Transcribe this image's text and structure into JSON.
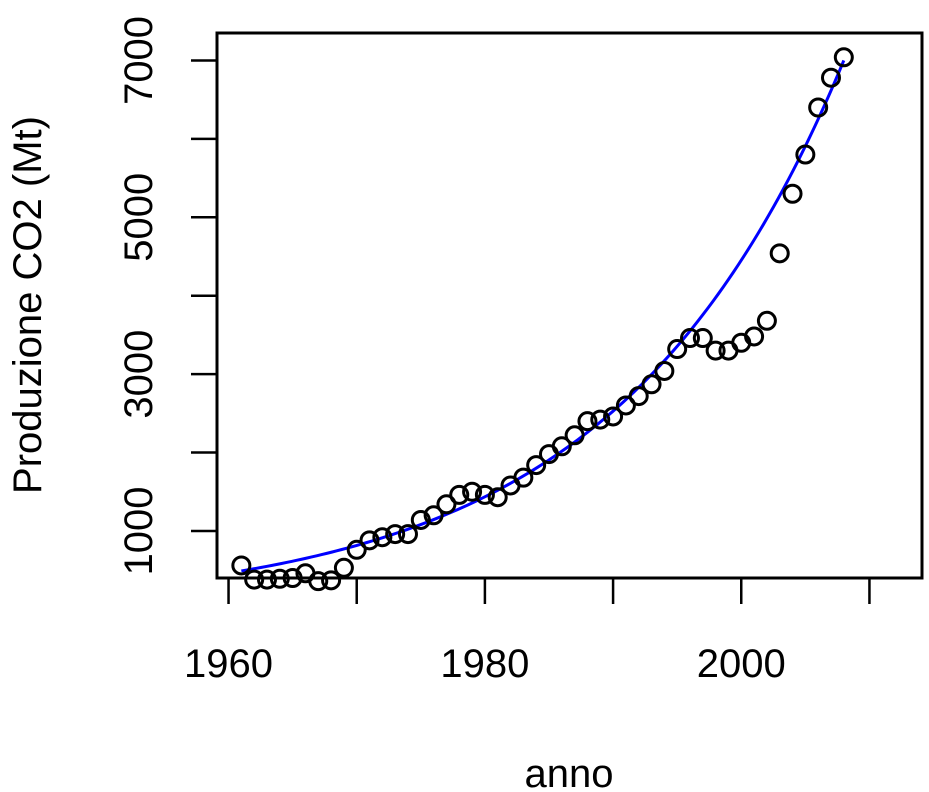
{
  "chart_data": {
    "type": "scatter",
    "title": "",
    "xlabel": "anno",
    "ylabel": "Produzione CO2 (Mt)",
    "xlim": [
      1959.1,
      2014.1
    ],
    "ylim": [
      400,
      7350
    ],
    "x_ticks": [
      1960,
      1970,
      1980,
      1990,
      2000,
      2010
    ],
    "x_tick_labels": [
      "1960",
      "",
      "1980",
      "",
      "2000",
      ""
    ],
    "y_ticks": [
      1000,
      2000,
      3000,
      4000,
      5000,
      6000,
      7000
    ],
    "y_tick_labels": [
      "1000",
      "",
      "3000",
      "",
      "5000",
      "",
      "7000"
    ],
    "grid": false,
    "series": [
      {
        "marker": "open-circle",
        "color": "#000000",
        "x": [
          1961,
          1962,
          1963,
          1964,
          1965,
          1966,
          1967,
          1968,
          1969,
          1970,
          1971,
          1972,
          1973,
          1974,
          1975,
          1976,
          1977,
          1978,
          1979,
          1980,
          1981,
          1982,
          1983,
          1984,
          1985,
          1986,
          1987,
          1988,
          1989,
          1990,
          1991,
          1992,
          1993,
          1994,
          1995,
          1996,
          1997,
          1998,
          1999,
          2000,
          2001,
          2002,
          2003,
          2004,
          2005,
          2006,
          2007,
          2008
        ],
        "y": [
          560,
          380,
          380,
          390,
          400,
          460,
          360,
          370,
          530,
          760,
          880,
          920,
          960,
          960,
          1140,
          1200,
          1340,
          1460,
          1500,
          1460,
          1430,
          1580,
          1680,
          1840,
          1980,
          2080,
          2220,
          2400,
          2420,
          2460,
          2600,
          2720,
          2870,
          3040,
          3320,
          3460,
          3460,
          3300,
          3300,
          3400,
          3480,
          3680,
          4540,
          5300,
          5800,
          6400,
          6780,
          7040
        ]
      }
    ],
    "fit_curve": {
      "type": "exponential",
      "color": "#0000ff",
      "x_range": [
        1961,
        2008
      ],
      "y_start": 490,
      "y_end": 7000
    }
  }
}
